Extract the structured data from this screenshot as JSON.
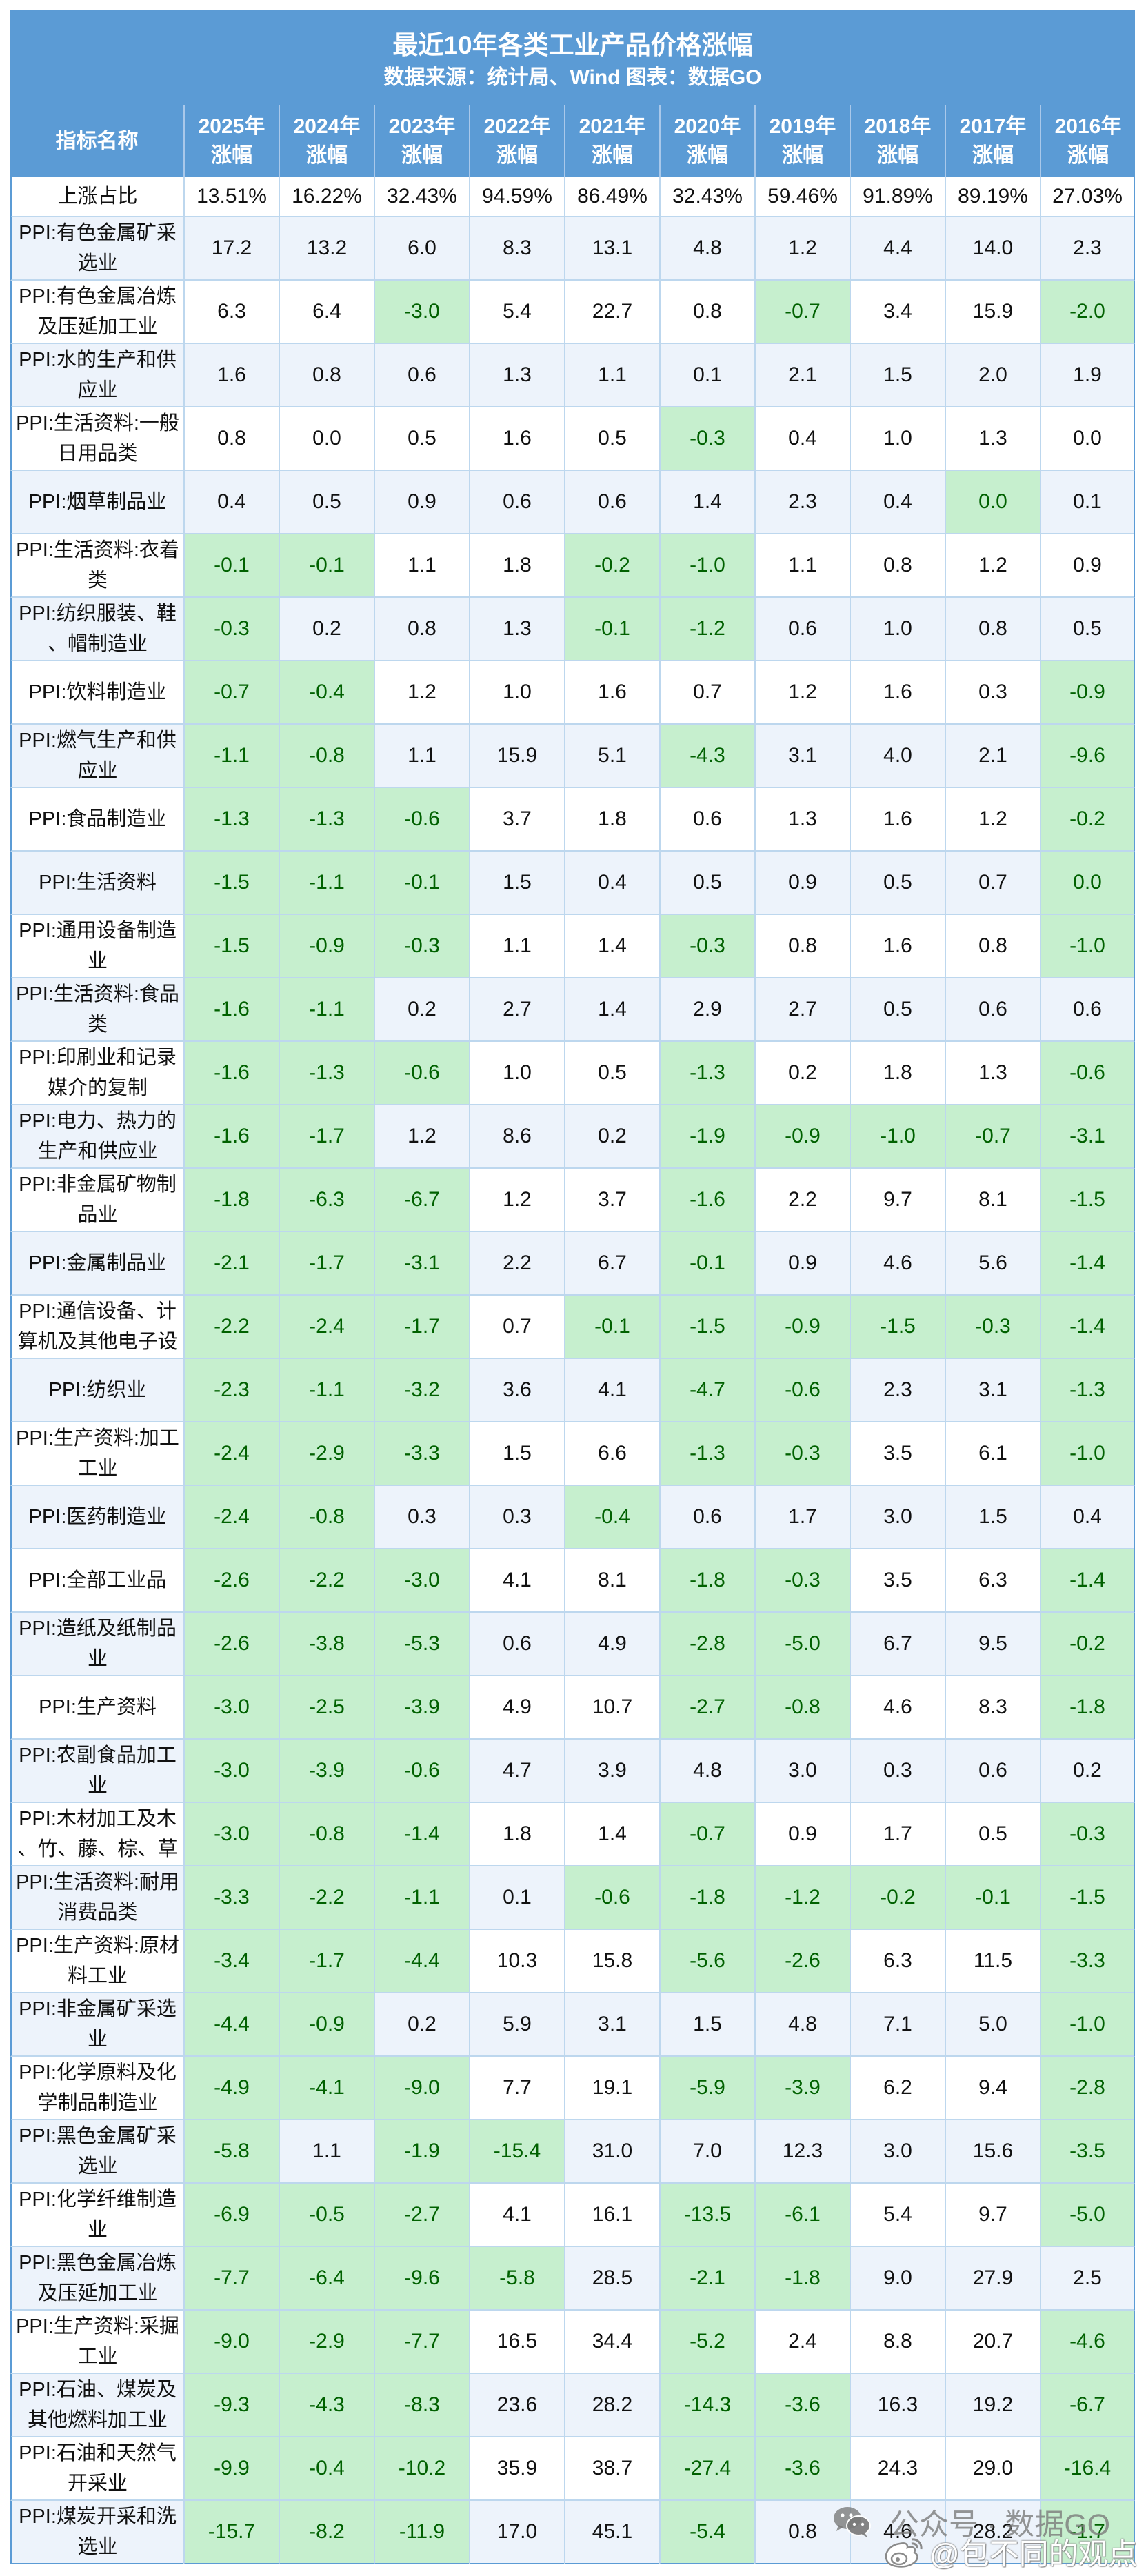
{
  "title": "最近10年各类工业产品价格涨幅",
  "subtitle": "数据来源：统计局、Wind 图表：数据GO",
  "colors": {
    "header_bg": "#5b9bd5",
    "stripe_bg": "#edf3fb",
    "negative_bg": "#c6efce",
    "negative_text": "#006100",
    "grid_border": "#bdd7ee"
  },
  "watermarks": {
    "wechat": {
      "icon": "wechat-icon",
      "text": "公众号 · 数据GO"
    },
    "weibo": {
      "icon": "weibo-icon",
      "text": "@包不同的观点"
    }
  },
  "chart_data": {
    "type": "table",
    "title": "最近10年各类工业产品价格涨幅",
    "subtitle": "数据来源：统计局、Wind 图表：数据GO",
    "highlight_rule": "negative values shaded green",
    "name_header": "指标名称",
    "columns": [
      {
        "year": "2025年",
        "label": "涨幅"
      },
      {
        "year": "2024年",
        "label": "涨幅"
      },
      {
        "year": "2023年",
        "label": "涨幅"
      },
      {
        "year": "2022年",
        "label": "涨幅"
      },
      {
        "year": "2021年",
        "label": "涨幅"
      },
      {
        "year": "2020年",
        "label": "涨幅"
      },
      {
        "year": "2019年",
        "label": "涨幅"
      },
      {
        "year": "2018年",
        "label": "涨幅"
      },
      {
        "year": "2017年",
        "label": "涨幅"
      },
      {
        "year": "2016年",
        "label": "涨幅"
      }
    ],
    "summary_row": {
      "label": "上涨占比",
      "values": [
        "13.51%",
        "16.22%",
        "32.43%",
        "94.59%",
        "86.49%",
        "32.43%",
        "59.46%",
        "91.89%",
        "89.19%",
        "27.03%"
      ]
    },
    "rows": [
      {
        "name": "PPI:有色金属矿采\n选业",
        "values": [
          "17.2",
          "13.2",
          "6.0",
          "8.3",
          "13.1",
          "4.8",
          "1.2",
          "4.4",
          "14.0",
          "2.3"
        ]
      },
      {
        "name": "PPI:有色金属冶炼\n及压延加工业",
        "values": [
          "6.3",
          "6.4",
          "-3.0",
          "5.4",
          "22.7",
          "0.8",
          "-0.7",
          "3.4",
          "15.9",
          "-2.0"
        ]
      },
      {
        "name": "PPI:水的生产和供\n应业",
        "values": [
          "1.6",
          "0.8",
          "0.6",
          "1.3",
          "1.1",
          "0.1",
          "2.1",
          "1.5",
          "2.0",
          "1.9"
        ]
      },
      {
        "name": "PPI:生活资料:一般\n日用品类",
        "values": [
          "0.8",
          "0.0",
          "0.5",
          "1.6",
          "0.5",
          "-0.3",
          "0.4",
          "1.0",
          "1.3",
          "0.0"
        ]
      },
      {
        "name": "PPI:烟草制品业",
        "values": [
          "0.4",
          "0.5",
          "0.9",
          "0.6",
          "0.6",
          "1.4",
          "2.3",
          "0.4",
          "0.0",
          "0.1"
        ],
        "green_zero": [
          8
        ]
      },
      {
        "name": "PPI:生活资料:衣着\n类",
        "values": [
          "-0.1",
          "-0.1",
          "1.1",
          "1.8",
          "-0.2",
          "-1.0",
          "1.1",
          "0.8",
          "1.2",
          "0.9"
        ]
      },
      {
        "name": "PPI:纺织服装、鞋\n、帽制造业",
        "values": [
          "-0.3",
          "0.2",
          "0.8",
          "1.3",
          "-0.1",
          "-1.2",
          "0.6",
          "1.0",
          "0.8",
          "0.5"
        ]
      },
      {
        "name": "PPI:饮料制造业",
        "values": [
          "-0.7",
          "-0.4",
          "1.2",
          "1.0",
          "1.6",
          "0.7",
          "1.2",
          "1.6",
          "0.3",
          "-0.9"
        ]
      },
      {
        "name": "PPI:燃气生产和供\n应业",
        "values": [
          "-1.1",
          "-0.8",
          "1.1",
          "15.9",
          "5.1",
          "-4.3",
          "3.1",
          "4.0",
          "2.1",
          "-9.6"
        ]
      },
      {
        "name": "PPI:食品制造业",
        "values": [
          "-1.3",
          "-1.3",
          "-0.6",
          "3.7",
          "1.8",
          "0.6",
          "1.3",
          "1.6",
          "1.2",
          "-0.2"
        ]
      },
      {
        "name": "PPI:生活资料",
        "values": [
          "-1.5",
          "-1.1",
          "-0.1",
          "1.5",
          "0.4",
          "0.5",
          "0.9",
          "0.5",
          "0.7",
          "0.0"
        ],
        "green_zero": [
          9
        ]
      },
      {
        "name": "PPI:通用设备制造\n业",
        "values": [
          "-1.5",
          "-0.9",
          "-0.3",
          "1.1",
          "1.4",
          "-0.3",
          "0.8",
          "1.6",
          "0.8",
          "-1.0"
        ]
      },
      {
        "name": "PPI:生活资料:食品\n类",
        "values": [
          "-1.6",
          "-1.1",
          "0.2",
          "2.7",
          "1.4",
          "2.9",
          "2.7",
          "0.5",
          "0.6",
          "0.6"
        ]
      },
      {
        "name": "PPI:印刷业和记录\n媒介的复制",
        "values": [
          "-1.6",
          "-1.3",
          "-0.6",
          "1.0",
          "0.5",
          "-1.3",
          "0.2",
          "1.8",
          "1.3",
          "-0.6"
        ]
      },
      {
        "name": "PPI:电力、热力的\n生产和供应业",
        "values": [
          "-1.6",
          "-1.7",
          "1.2",
          "8.6",
          "0.2",
          "-1.9",
          "-0.9",
          "-1.0",
          "-0.7",
          "-3.1"
        ]
      },
      {
        "name": "PPI:非金属矿物制\n品业",
        "values": [
          "-1.8",
          "-6.3",
          "-6.7",
          "1.2",
          "3.7",
          "-1.6",
          "2.2",
          "9.7",
          "8.1",
          "-1.5"
        ]
      },
      {
        "name": "PPI:金属制品业",
        "values": [
          "-2.1",
          "-1.7",
          "-3.1",
          "2.2",
          "6.7",
          "-0.1",
          "0.9",
          "4.6",
          "5.6",
          "-1.4"
        ]
      },
      {
        "name": "PPI:通信设备、计\n算机及其他电子设",
        "values": [
          "-2.2",
          "-2.4",
          "-1.7",
          "0.7",
          "-0.1",
          "-1.5",
          "-0.9",
          "-1.5",
          "-0.3",
          "-1.4"
        ]
      },
      {
        "name": "PPI:纺织业",
        "values": [
          "-2.3",
          "-1.1",
          "-3.2",
          "3.6",
          "4.1",
          "-4.7",
          "-0.6",
          "2.3",
          "3.1",
          "-1.3"
        ]
      },
      {
        "name": "PPI:生产资料:加工\n工业",
        "values": [
          "-2.4",
          "-2.9",
          "-3.3",
          "1.5",
          "6.6",
          "-1.3",
          "-0.3",
          "3.5",
          "6.1",
          "-1.0"
        ]
      },
      {
        "name": "PPI:医药制造业",
        "values": [
          "-2.4",
          "-0.8",
          "0.3",
          "0.3",
          "-0.4",
          "0.6",
          "1.7",
          "3.0",
          "1.5",
          "0.4"
        ]
      },
      {
        "name": "PPI:全部工业品",
        "values": [
          "-2.6",
          "-2.2",
          "-3.0",
          "4.1",
          "8.1",
          "-1.8",
          "-0.3",
          "3.5",
          "6.3",
          "-1.4"
        ]
      },
      {
        "name": "PPI:造纸及纸制品\n业",
        "values": [
          "-2.6",
          "-3.8",
          "-5.3",
          "0.6",
          "4.9",
          "-2.8",
          "-5.0",
          "6.7",
          "9.5",
          "-0.2"
        ]
      },
      {
        "name": "PPI:生产资料",
        "values": [
          "-3.0",
          "-2.5",
          "-3.9",
          "4.9",
          "10.7",
          "-2.7",
          "-0.8",
          "4.6",
          "8.3",
          "-1.8"
        ]
      },
      {
        "name": "PPI:农副食品加工\n业",
        "values": [
          "-3.0",
          "-3.9",
          "-0.6",
          "4.7",
          "3.9",
          "4.8",
          "3.0",
          "0.3",
          "0.6",
          "0.2"
        ]
      },
      {
        "name": "PPI:木材加工及木\n、竹、藤、棕、草",
        "values": [
          "-3.0",
          "-0.8",
          "-1.4",
          "1.8",
          "1.4",
          "-0.7",
          "0.9",
          "1.7",
          "0.5",
          "-0.3"
        ]
      },
      {
        "name": "PPI:生活资料:耐用\n消费品类",
        "values": [
          "-3.3",
          "-2.2",
          "-1.1",
          "0.1",
          "-0.6",
          "-1.8",
          "-1.2",
          "-0.2",
          "-0.1",
          "-1.5"
        ]
      },
      {
        "name": "PPI:生产资料:原材\n料工业",
        "values": [
          "-3.4",
          "-1.7",
          "-4.4",
          "10.3",
          "15.8",
          "-5.6",
          "-2.6",
          "6.3",
          "11.5",
          "-3.3"
        ]
      },
      {
        "name": "PPI:非金属矿采选\n业",
        "values": [
          "-4.4",
          "-0.9",
          "0.2",
          "5.9",
          "3.1",
          "1.5",
          "4.8",
          "7.1",
          "5.0",
          "-1.0"
        ]
      },
      {
        "name": "PPI:化学原料及化\n学制品制造业",
        "values": [
          "-4.9",
          "-4.1",
          "-9.0",
          "7.7",
          "19.1",
          "-5.9",
          "-3.9",
          "6.2",
          "9.4",
          "-2.8"
        ]
      },
      {
        "name": "PPI:黑色金属矿采\n选业",
        "values": [
          "-5.8",
          "1.1",
          "-1.9",
          "-15.4",
          "31.0",
          "7.0",
          "12.3",
          "3.0",
          "15.6",
          "-3.5"
        ]
      },
      {
        "name": "PPI:化学纤维制造\n业",
        "values": [
          "-6.9",
          "-0.5",
          "-2.7",
          "4.1",
          "16.1",
          "-13.5",
          "-6.1",
          "5.4",
          "9.7",
          "-5.0"
        ]
      },
      {
        "name": "PPI:黑色金属冶炼\n及压延加工业",
        "values": [
          "-7.7",
          "-6.4",
          "-9.6",
          "-5.8",
          "28.5",
          "-2.1",
          "-1.8",
          "9.0",
          "27.9",
          "2.5"
        ]
      },
      {
        "name": "PPI:生产资料:采掘\n工业",
        "values": [
          "-9.0",
          "-2.9",
          "-7.7",
          "16.5",
          "34.4",
          "-5.2",
          "2.4",
          "8.8",
          "20.7",
          "-4.6"
        ]
      },
      {
        "name": "PPI:石油、煤炭及\n其他燃料加工业",
        "values": [
          "-9.3",
          "-4.3",
          "-8.3",
          "23.6",
          "28.2",
          "-14.3",
          "-3.6",
          "16.3",
          "19.2",
          "-6.7"
        ]
      },
      {
        "name": "PPI:石油和天然气\n开采业",
        "values": [
          "-9.9",
          "-0.4",
          "-10.2",
          "35.9",
          "38.7",
          "-27.4",
          "-3.6",
          "24.3",
          "29.0",
          "-16.4"
        ]
      },
      {
        "name": "PPI:煤炭开采和洗\n选业",
        "values": [
          "-15.7",
          "-8.2",
          "-11.9",
          "17.0",
          "45.1",
          "-5.4",
          "0.8",
          "4.6",
          "28.2",
          "-1.7"
        ]
      }
    ]
  }
}
